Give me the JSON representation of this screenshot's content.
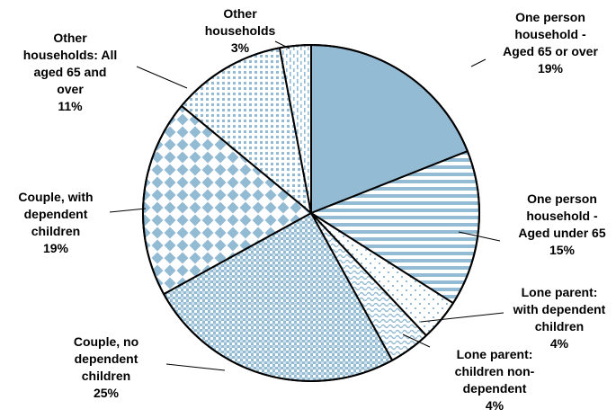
{
  "chart_data": {
    "type": "pie",
    "slices": [
      {
        "label": [
          "One person",
          "household -",
          "Aged 65 or over"
        ],
        "value": 19,
        "value_text": "19%",
        "pattern": "solid"
      },
      {
        "label": [
          "One person",
          "household -",
          "Aged under 65"
        ],
        "value": 15,
        "value_text": "15%",
        "pattern": "hstripes"
      },
      {
        "label": [
          "Lone parent:",
          "with dependent",
          "children"
        ],
        "value": 4,
        "value_text": "4%",
        "pattern": "sparsedots"
      },
      {
        "label": [
          "Lone parent:",
          "children non-",
          "dependent"
        ],
        "value": 4,
        "value_text": "4%",
        "pattern": "wave"
      },
      {
        "label": [
          "Couple, no",
          "dependent",
          "children"
        ],
        "value": 25,
        "value_text": "25%",
        "pattern": "checker"
      },
      {
        "label": [
          "Couple, with",
          "dependent",
          "children"
        ],
        "value": 19,
        "value_text": "19%",
        "pattern": "diamond"
      },
      {
        "label": [
          "Other",
          "households: All",
          "aged 65 and",
          "over"
        ],
        "value": 11,
        "value_text": "11%",
        "pattern": "dots"
      },
      {
        "label": [
          "Other",
          "households"
        ],
        "value": 3,
        "value_text": "3%",
        "pattern": "vdash"
      }
    ]
  },
  "colors": {
    "fill": "#93bbd4",
    "stroke": "#000000",
    "background": "#ffffff"
  }
}
